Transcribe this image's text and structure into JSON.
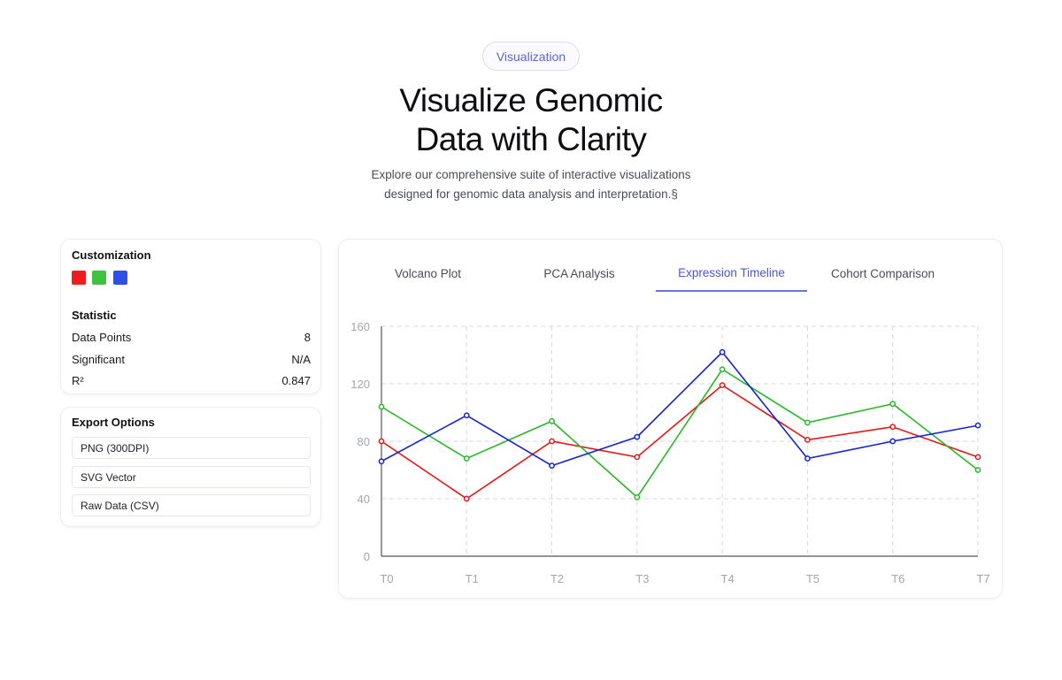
{
  "hero": {
    "badge": "Visualization",
    "title_line1": "Visualize Genomic",
    "title_line2": "Data with Clarity",
    "subtitle_line1": "Explore our comprehensive suite of interactive visualizations",
    "subtitle_line2": "designed for genomic data analysis and interpretation.§"
  },
  "customization": {
    "title": "Customization",
    "swatches": [
      "#f21c1c",
      "#3fc23f",
      "#2f4fe6"
    ]
  },
  "statistic": {
    "title": "Statistic",
    "rows": [
      {
        "label": "Data Points",
        "value": "8"
      },
      {
        "label": "Significant",
        "value": "N/A"
      },
      {
        "label": "R²",
        "value": "0.847"
      }
    ]
  },
  "export": {
    "title": "Export Options",
    "buttons": [
      "PNG (300DPI)",
      "SVG Vector",
      "Raw Data (CSV)"
    ]
  },
  "tabs": [
    {
      "label": "Volcano Plot",
      "active": false
    },
    {
      "label": "PCA Analysis",
      "active": false
    },
    {
      "label": "Expression Timeline",
      "active": true
    },
    {
      "label": "Cohort Comparison",
      "active": false
    }
  ],
  "chart_data": {
    "type": "line",
    "title": "",
    "xlabel": "",
    "ylabel": "",
    "categories": [
      "T0",
      "T1",
      "T2",
      "T3",
      "T4",
      "T5",
      "T6",
      "T7"
    ],
    "ylim": [
      0,
      160
    ],
    "yticks": [
      0,
      40,
      80,
      120,
      160
    ],
    "grid": true,
    "legend": "none",
    "series": [
      {
        "color": "#e81717",
        "values": [
          80,
          40,
          80,
          69,
          119,
          81,
          90,
          69
        ]
      },
      {
        "color": "#29b829",
        "values": [
          104,
          68,
          94,
          41,
          130,
          93,
          106,
          60
        ]
      },
      {
        "color": "#1424d6",
        "values": [
          66,
          98,
          63,
          83,
          142,
          68,
          80,
          91
        ]
      }
    ]
  }
}
